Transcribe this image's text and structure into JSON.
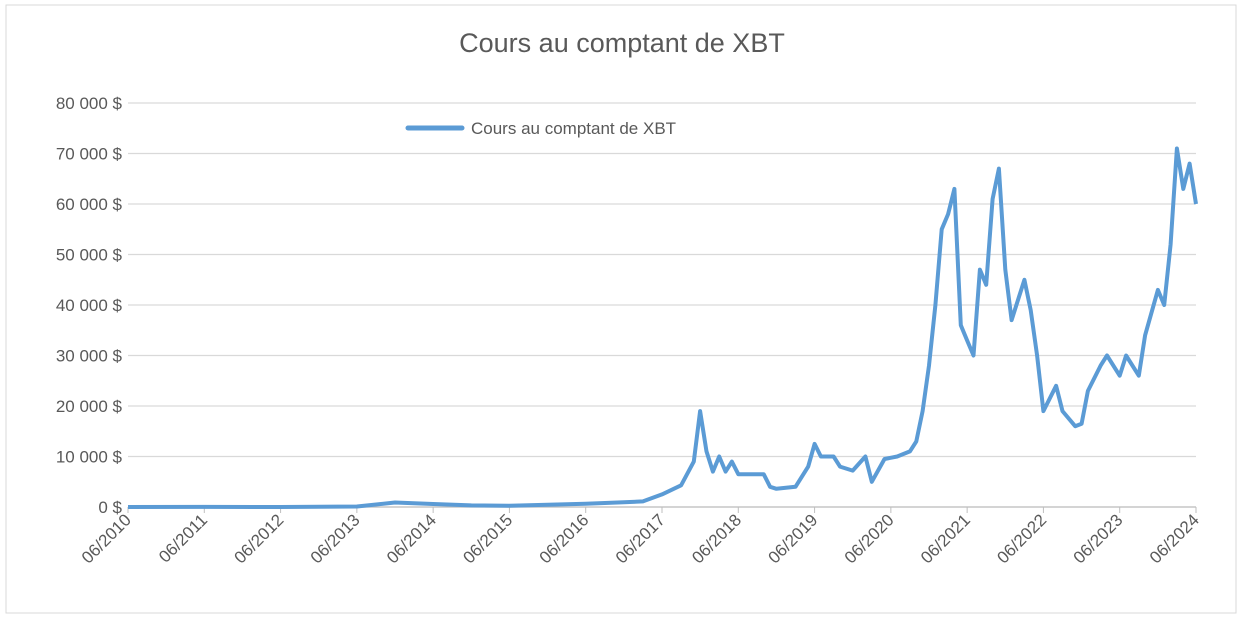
{
  "chart_data": {
    "type": "line",
    "title": "Cours au comptant de XBT",
    "x": [
      "2010-06",
      "2011-06",
      "2012-06",
      "2013-06",
      "2013-12",
      "2014-06",
      "2014-12",
      "2015-06",
      "2015-12",
      "2016-06",
      "2016-12",
      "2017-03",
      "2017-06",
      "2017-09",
      "2017-11",
      "2017-12",
      "2018-01",
      "2018-02",
      "2018-03",
      "2018-04",
      "2018-05",
      "2018-06",
      "2018-08",
      "2018-10",
      "2018-11",
      "2018-12",
      "2019-03",
      "2019-05",
      "2019-06",
      "2019-07",
      "2019-09",
      "2019-10",
      "2019-12",
      "2020-02",
      "2020-03",
      "2020-05",
      "2020-07",
      "2020-09",
      "2020-10",
      "2020-11",
      "2020-12",
      "2021-01",
      "2021-02",
      "2021-03",
      "2021-04",
      "2021-05",
      "2021-06",
      "2021-07",
      "2021-08",
      "2021-09",
      "2021-10",
      "2021-11",
      "2021-12",
      "2022-01",
      "2022-03",
      "2022-04",
      "2022-05",
      "2022-06",
      "2022-08",
      "2022-09",
      "2022-11",
      "2022-12",
      "2023-01",
      "2023-03",
      "2023-04",
      "2023-06",
      "2023-07",
      "2023-09",
      "2023-10",
      "2023-12",
      "2024-01",
      "2024-02",
      "2024-03",
      "2024-04",
      "2024-05",
      "2024-06"
    ],
    "series": [
      {
        "name": "Cours au comptant de XBT",
        "color": "#5b9bd5",
        "values": [
          0,
          17,
          6,
          100,
          900,
          600,
          320,
          240,
          430,
          650,
          950,
          1100,
          2500,
          4300,
          9000,
          19000,
          11000,
          7000,
          10000,
          7000,
          9000,
          6500,
          6500,
          6500,
          4000,
          3600,
          4000,
          8000,
          12500,
          10000,
          10000,
          8000,
          7200,
          10000,
          5000,
          9500,
          10000,
          11000,
          13000,
          19000,
          28000,
          40000,
          55000,
          58000,
          63000,
          36000,
          33000,
          30000,
          47000,
          44000,
          61000,
          67000,
          47000,
          37000,
          45000,
          39000,
          30000,
          19000,
          24000,
          19000,
          16000,
          16500,
          23000,
          28000,
          30000,
          26000,
          30000,
          26000,
          34000,
          43000,
          40000,
          52000,
          71000,
          63000,
          68000,
          60000
        ]
      }
    ],
    "xlim": [
      "2010-06",
      "2024-06"
    ],
    "xticks": [
      {
        "value": "2010-06",
        "label": "06/2010"
      },
      {
        "value": "2011-06",
        "label": "06/2011"
      },
      {
        "value": "2012-06",
        "label": "06/2012"
      },
      {
        "value": "2013-06",
        "label": "06/2013"
      },
      {
        "value": "2014-06",
        "label": "06/2014"
      },
      {
        "value": "2015-06",
        "label": "06/2015"
      },
      {
        "value": "2016-06",
        "label": "06/2016"
      },
      {
        "value": "2017-06",
        "label": "06/2017"
      },
      {
        "value": "2018-06",
        "label": "06/2018"
      },
      {
        "value": "2019-06",
        "label": "06/2019"
      },
      {
        "value": "2020-06",
        "label": "06/2020"
      },
      {
        "value": "2021-06",
        "label": "06/2021"
      },
      {
        "value": "2022-06",
        "label": "06/2022"
      },
      {
        "value": "2023-06",
        "label": "06/2023"
      },
      {
        "value": "2024-06",
        "label": "06/2024"
      }
    ],
    "ylim": [
      0,
      80000
    ],
    "yticks": [
      {
        "value": 0,
        "label": "0 $"
      },
      {
        "value": 10000,
        "label": "10 000 $"
      },
      {
        "value": 20000,
        "label": "20 000 $"
      },
      {
        "value": 30000,
        "label": "30 000 $"
      },
      {
        "value": 40000,
        "label": "40 000 $"
      },
      {
        "value": 50000,
        "label": "50 000 $"
      },
      {
        "value": 60000,
        "label": "60 000 $"
      },
      {
        "value": 70000,
        "label": "70 000 $"
      },
      {
        "value": 80000,
        "label": "80 000 $"
      }
    ],
    "grid": true,
    "legend": "top"
  }
}
